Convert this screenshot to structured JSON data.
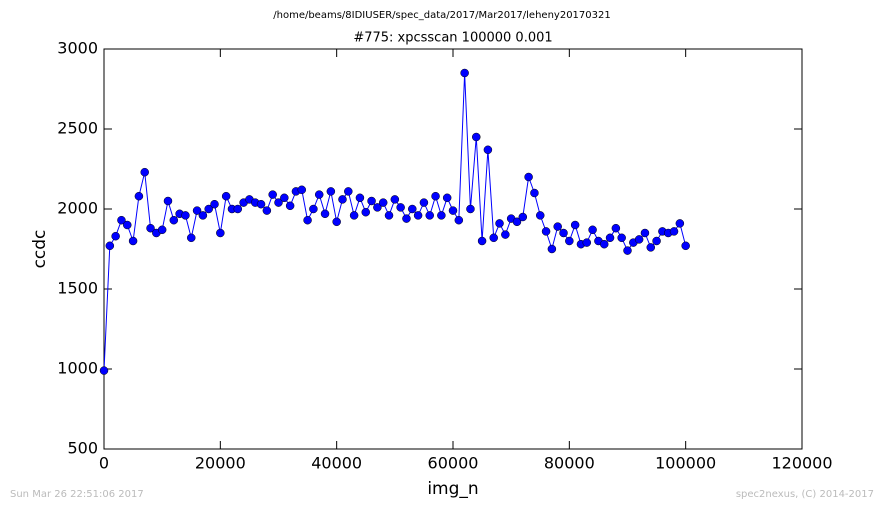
{
  "chart_data": {
    "type": "line",
    "suptitle": "/home/beams/8IDIUSER/spec_data/2017/Mar2017/leheny20170321",
    "title": "#775: xpcsscan 100000 0.001",
    "x_label": "img_n",
    "y_label": "ccdc",
    "footer_left": "Sun Mar 26 22:51:06 2017",
    "footer_right": "spec2nexus, (C) 2014-2017",
    "xlim": [
      0,
      120000
    ],
    "ylim": [
      500,
      3000
    ],
    "xticks": [
      0,
      20000,
      40000,
      60000,
      80000,
      100000,
      120000
    ],
    "yticks": [
      500,
      1000,
      1500,
      2000,
      2500,
      3000
    ],
    "x": [
      0,
      1000,
      2000,
      3000,
      4000,
      5000,
      6000,
      7000,
      8000,
      9000,
      10000,
      11000,
      12000,
      13000,
      14000,
      15000,
      16000,
      17000,
      18000,
      19000,
      20000,
      21000,
      22000,
      23000,
      24000,
      25000,
      26000,
      27000,
      28000,
      29000,
      30000,
      31000,
      32000,
      33000,
      34000,
      35000,
      36000,
      37000,
      38000,
      39000,
      40000,
      41000,
      42000,
      43000,
      44000,
      45000,
      46000,
      47000,
      48000,
      49000,
      50000,
      51000,
      52000,
      53000,
      54000,
      55000,
      56000,
      57000,
      58000,
      59000,
      60000,
      61000,
      62000,
      63000,
      64000,
      65000,
      66000,
      67000,
      68000,
      69000,
      70000,
      71000,
      72000,
      73000,
      74000,
      75000,
      76000,
      77000,
      78000,
      79000,
      80000,
      81000,
      82000,
      83000,
      84000,
      85000,
      86000,
      87000,
      88000,
      89000,
      90000,
      91000,
      92000,
      93000,
      94000,
      95000,
      96000,
      97000,
      98000,
      99000,
      100000
    ],
    "series": [
      {
        "name": "ccdc",
        "color": "#0000ff",
        "values": [
          990,
          1770,
          1830,
          1930,
          1900,
          1800,
          2080,
          2230,
          1880,
          1850,
          1870,
          2050,
          1930,
          1970,
          1960,
          1820,
          1990,
          1960,
          2000,
          2030,
          1850,
          2080,
          2000,
          2000,
          2040,
          2060,
          2040,
          2030,
          1990,
          2090,
          2040,
          2070,
          2020,
          2110,
          2120,
          1930,
          2000,
          2090,
          1970,
          2110,
          1920,
          2060,
          2110,
          1960,
          2070,
          1980,
          2050,
          2010,
          2040,
          1960,
          2060,
          2010,
          1940,
          2000,
          1960,
          2040,
          1960,
          2080,
          1960,
          2070,
          1990,
          1930,
          2850,
          2000,
          2450,
          1800,
          2370,
          1820,
          1910,
          1840,
          1940,
          1920,
          1950,
          2200,
          2100,
          1960,
          1860,
          1750,
          1890,
          1850,
          1800,
          1900,
          1780,
          1790,
          1870,
          1800,
          1780,
          1820,
          1880,
          1820,
          1740,
          1790,
          1810,
          1850,
          1760,
          1800,
          1860,
          1850,
          1860,
          1910,
          1770
        ]
      }
    ]
  }
}
